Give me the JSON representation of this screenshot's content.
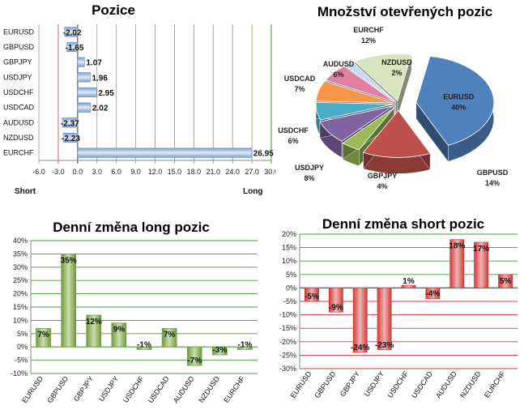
{
  "chart_data": [
    {
      "type": "bar",
      "orientation": "horizontal",
      "title": "Pozice",
      "categories": [
        "EURUSD",
        "GBPUSD",
        "GBPJPY",
        "USDJPY",
        "USDCHF",
        "USDCAD",
        "AUDUSD",
        "NZDUSD",
        "EURCHF"
      ],
      "values": [
        -2.02,
        -1.65,
        1.07,
        1.96,
        2.95,
        2.02,
        -2.37,
        -2.23,
        26.95
      ],
      "value_labels": [
        "-2.02",
        "-1.65",
        "1.07",
        "1.96",
        "2.95",
        "2.02",
        "-2.37",
        "-2.23",
        "26.95"
      ],
      "xlim": [
        -6.0,
        30.0
      ],
      "xticks": [
        "-6.0",
        "-3.0",
        "0.0",
        "3.0",
        "6.0",
        "9.0",
        "12.0",
        "15.0",
        "18.0",
        "21.0",
        "24.0",
        "27.0",
        "30.0"
      ],
      "left_label": "Short",
      "right_label": "Long",
      "colors": {
        "bar": "#9fb7d8",
        "short_grid": "#d98080",
        "long_grid": "#6aa84f",
        "zero": "#555555"
      }
    },
    {
      "type": "pie",
      "title": "Množství otevřených pozic",
      "labels": [
        "EURUSD",
        "GBPUSD",
        "GBPJPY",
        "USDJPY",
        "USDCHF",
        "USDCAD",
        "AUDUSD",
        "NZDUSD",
        "EURCHF"
      ],
      "values": [
        40,
        14,
        4,
        8,
        6,
        7,
        6,
        2,
        12
      ],
      "value_labels": [
        "40%",
        "14%",
        "4%",
        "8%",
        "6%",
        "7%",
        "6%",
        "2%",
        "12%"
      ],
      "colors": [
        "#4f81bd",
        "#c0504d",
        "#9bbb59",
        "#8064a2",
        "#4bacc6",
        "#f79646",
        "#e07fa0",
        "#c5d9f1",
        "#d7e4bd"
      ]
    },
    {
      "type": "bar",
      "title": "Denní změna long pozic",
      "categories": [
        "EURUSD",
        "GBPUSD",
        "GBPJPY",
        "USDJPY",
        "USDCHF",
        "USDCAD",
        "AUDUSD",
        "NZDUSD",
        "EURCHF"
      ],
      "values": [
        7,
        35,
        12,
        9,
        -1,
        7,
        -7,
        -3,
        -1
      ],
      "value_labels": [
        "7%",
        "35%",
        "12%",
        "9%",
        "-1%",
        "7%",
        "-7%",
        "-3%",
        "-1%"
      ],
      "ylim": [
        -10,
        40
      ],
      "yticks": [
        "40%",
        "35%",
        "30%",
        "25%",
        "20%",
        "15%",
        "10%",
        "5%",
        "0%",
        "-5%",
        "-10%"
      ],
      "colors": {
        "bar": "#6e9a3c",
        "bar_light": "#c9deb0",
        "grid": "#4a9a3a"
      }
    },
    {
      "type": "bar",
      "title": "Denní změna short pozic",
      "categories": [
        "EURUSD",
        "GBPUSD",
        "GBPJPY",
        "USDJPY",
        "USDCHF",
        "USDCAD",
        "AUDUSD",
        "NZDUSD",
        "EURCHF"
      ],
      "values": [
        -5,
        -9,
        -24,
        -23,
        1,
        -4,
        18,
        17,
        5
      ],
      "value_labels": [
        "-5%",
        "-9%",
        "-24%",
        "-23%",
        "1%",
        "-4%",
        "18%",
        "17%",
        "5%"
      ],
      "ylim": [
        -30,
        20
      ],
      "yticks": [
        "20%",
        "15%",
        "10%",
        "5%",
        "0%",
        "-5%",
        "-10%",
        "-15%",
        "-20%",
        "-25%",
        "-30%"
      ],
      "colors": {
        "bar": "#d03a3a",
        "bar_light": "#f2b3b3",
        "pos_grid": "#4a9a3a",
        "neg_grid": "#d03a3a"
      }
    }
  ]
}
